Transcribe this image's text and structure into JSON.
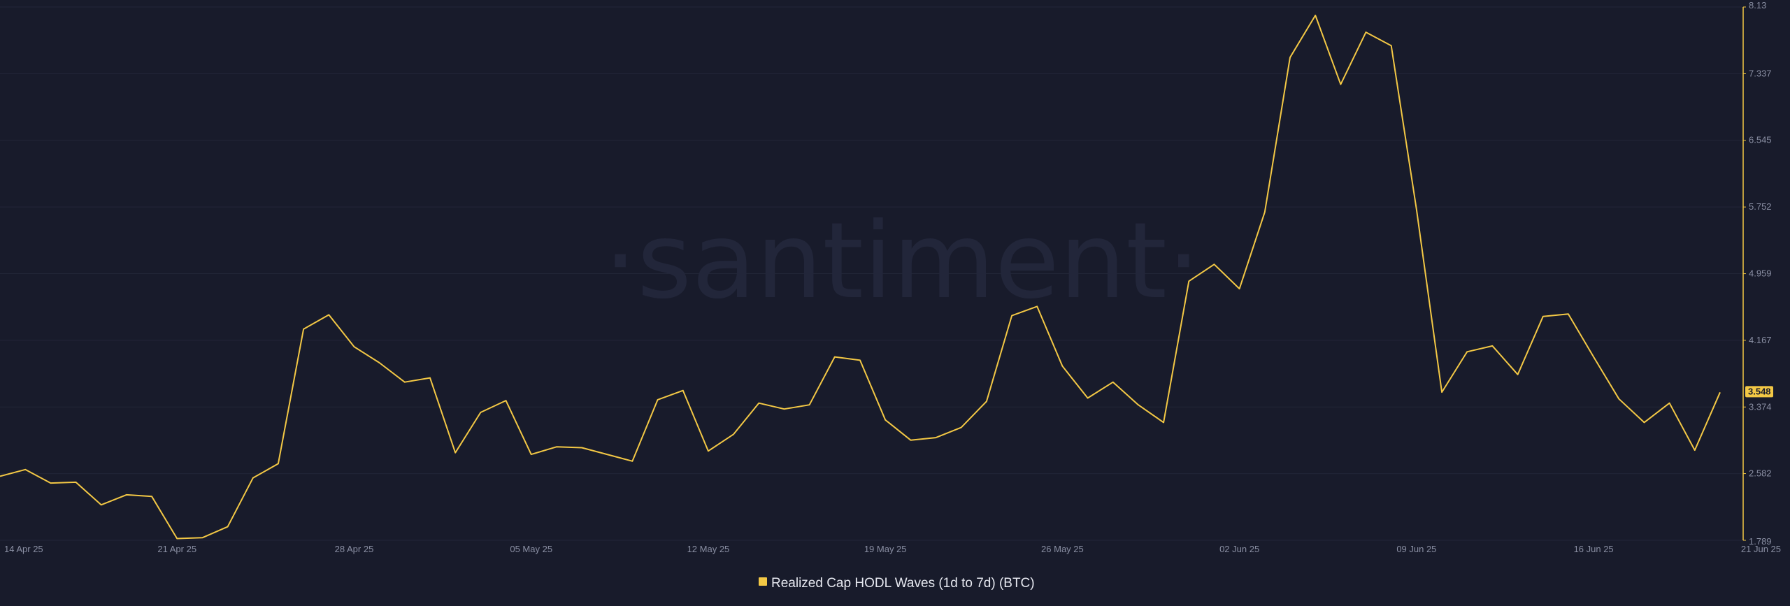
{
  "watermark": "·santiment·",
  "colors": {
    "background": "#181b2b",
    "series": "#f3c845",
    "axis": "#f3c845",
    "grid": "#222638",
    "tick_text": "#8a8fa3"
  },
  "chart_data": {
    "type": "line",
    "title": "",
    "xlabel": "",
    "ylabel": "",
    "ylim": [
      1.789,
      8.13
    ],
    "y_ticks": [
      "8.13",
      "7.337",
      "6.545",
      "5.752",
      "4.959",
      "4.167",
      "3.374",
      "2.582",
      "1.789"
    ],
    "x_ticks": [
      "14 Apr 25",
      "21 Apr 25",
      "28 Apr 25",
      "05 May 25",
      "12 May 25",
      "19 May 25",
      "26 May 25",
      "02 Jun 25",
      "09 Jun 25",
      "16 Jun 25",
      "21 Jun 25"
    ],
    "current_value_label": "3.548",
    "grid": true,
    "legend_position": "bottom-center",
    "series": [
      {
        "name": "Realized Cap HODL Waves (1d to 7d) (BTC)",
        "x": [
          "2025-04-14",
          "2025-04-15",
          "2025-04-16",
          "2025-04-17",
          "2025-04-18",
          "2025-04-19",
          "2025-04-20",
          "2025-04-21",
          "2025-04-22",
          "2025-04-23",
          "2025-04-24",
          "2025-04-25",
          "2025-04-26",
          "2025-04-27",
          "2025-04-28",
          "2025-04-29",
          "2025-04-30",
          "2025-05-01",
          "2025-05-02",
          "2025-05-03",
          "2025-05-04",
          "2025-05-05",
          "2025-05-06",
          "2025-05-07",
          "2025-05-08",
          "2025-05-09",
          "2025-05-10",
          "2025-05-11",
          "2025-05-12",
          "2025-05-13",
          "2025-05-14",
          "2025-05-15",
          "2025-05-16",
          "2025-05-17",
          "2025-05-18",
          "2025-05-19",
          "2025-05-20",
          "2025-05-21",
          "2025-05-22",
          "2025-05-23",
          "2025-05-24",
          "2025-05-25",
          "2025-05-26",
          "2025-05-27",
          "2025-05-28",
          "2025-05-29",
          "2025-05-30",
          "2025-05-31",
          "2025-06-01",
          "2025-06-02",
          "2025-06-03",
          "2025-06-04",
          "2025-06-05",
          "2025-06-06",
          "2025-06-07",
          "2025-06-08",
          "2025-06-09",
          "2025-06-10",
          "2025-06-11",
          "2025-06-12",
          "2025-06-13",
          "2025-06-14",
          "2025-06-15",
          "2025-06-16",
          "2025-06-17",
          "2025-06-18",
          "2025-06-19",
          "2025-06-20",
          "2025-06-21"
        ],
        "values": [
          2.55,
          2.63,
          2.47,
          2.48,
          2.21,
          2.33,
          2.31,
          1.81,
          1.82,
          1.95,
          2.53,
          2.7,
          4.3,
          4.47,
          4.09,
          3.9,
          3.67,
          3.72,
          2.83,
          3.31,
          3.45,
          2.81,
          2.9,
          2.89,
          2.81,
          2.73,
          3.46,
          3.57,
          2.85,
          3.05,
          3.42,
          3.35,
          3.4,
          3.97,
          3.93,
          3.22,
          2.98,
          3.01,
          3.13,
          3.44,
          4.46,
          4.57,
          3.86,
          3.48,
          3.67,
          3.4,
          3.19,
          4.87,
          5.07,
          4.78,
          5.69,
          7.53,
          8.03,
          7.21,
          7.83,
          7.67,
          5.72,
          3.55,
          4.03,
          4.1,
          3.76,
          4.45,
          4.48,
          3.97,
          3.47,
          3.19,
          3.42,
          2.86,
          3.548
        ]
      }
    ]
  }
}
